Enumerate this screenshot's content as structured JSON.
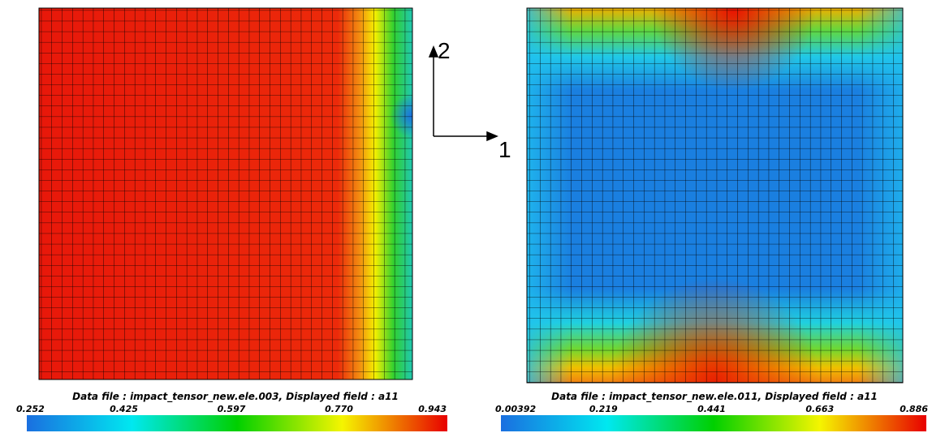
{
  "panels": [
    {
      "caption": "Data file : impact_tensor_new.ele.003, Displayed field : a11",
      "colorbar_labels": [
        "0.252",
        "0.425",
        "0.597",
        "0.770",
        "0.943"
      ]
    },
    {
      "caption": "Data file : impact_tensor_new.ele.011, Displayed field : a11",
      "colorbar_labels": [
        "0.00392",
        "0.219",
        "0.441",
        "0.663",
        "0.886"
      ]
    }
  ],
  "axes": {
    "vertical": "2",
    "horizontal": "1"
  }
}
